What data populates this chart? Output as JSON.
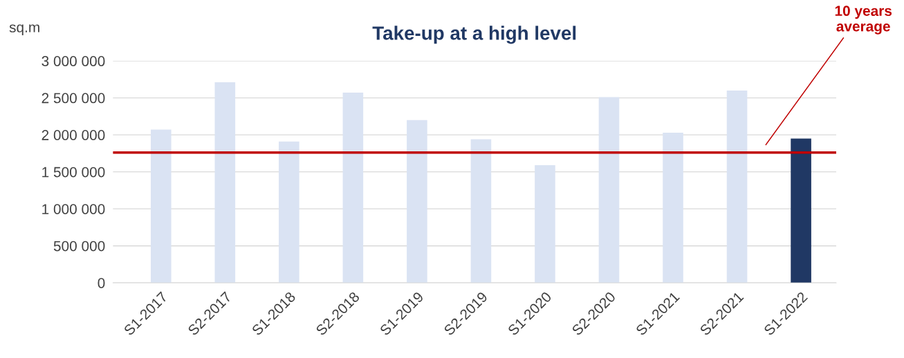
{
  "chart_data": {
    "type": "bar",
    "title": "Take-up at a high level",
    "ylabel": "sq.m",
    "categories": [
      "S1-2017",
      "S2-2017",
      "S1-2018",
      "S2-2018",
      "S1-2019",
      "S2-2019",
      "S1-2020",
      "S2-2020",
      "S1-2021",
      "S2-2021",
      "S1-2022"
    ],
    "values": [
      2070000,
      2710000,
      1910000,
      2570000,
      2200000,
      1940000,
      1590000,
      2510000,
      2030000,
      2600000,
      1950000
    ],
    "colors": [
      "#dae3f3",
      "#dae3f3",
      "#dae3f3",
      "#dae3f3",
      "#dae3f3",
      "#dae3f3",
      "#dae3f3",
      "#dae3f3",
      "#dae3f3",
      "#dae3f3",
      "#203864"
    ],
    "ylim": [
      0,
      3000000
    ],
    "yticks": [
      0,
      {
        "value": 500000,
        "label": "500 000"
      },
      {
        "value": 1000000,
        "label": "1 000 000"
      },
      {
        "value": 1500000,
        "label": "1 500 000"
      },
      {
        "value": 2000000,
        "label": "2 000 000"
      },
      {
        "value": 2500000,
        "label": "2 500 000"
      },
      {
        "value": 3000000,
        "label": "3 000 000"
      }
    ],
    "grid": "y",
    "ref_lines": [
      {
        "axis": "y",
        "value": 1760000,
        "label": "10 years\naverage",
        "color": "#c00000"
      }
    ]
  }
}
